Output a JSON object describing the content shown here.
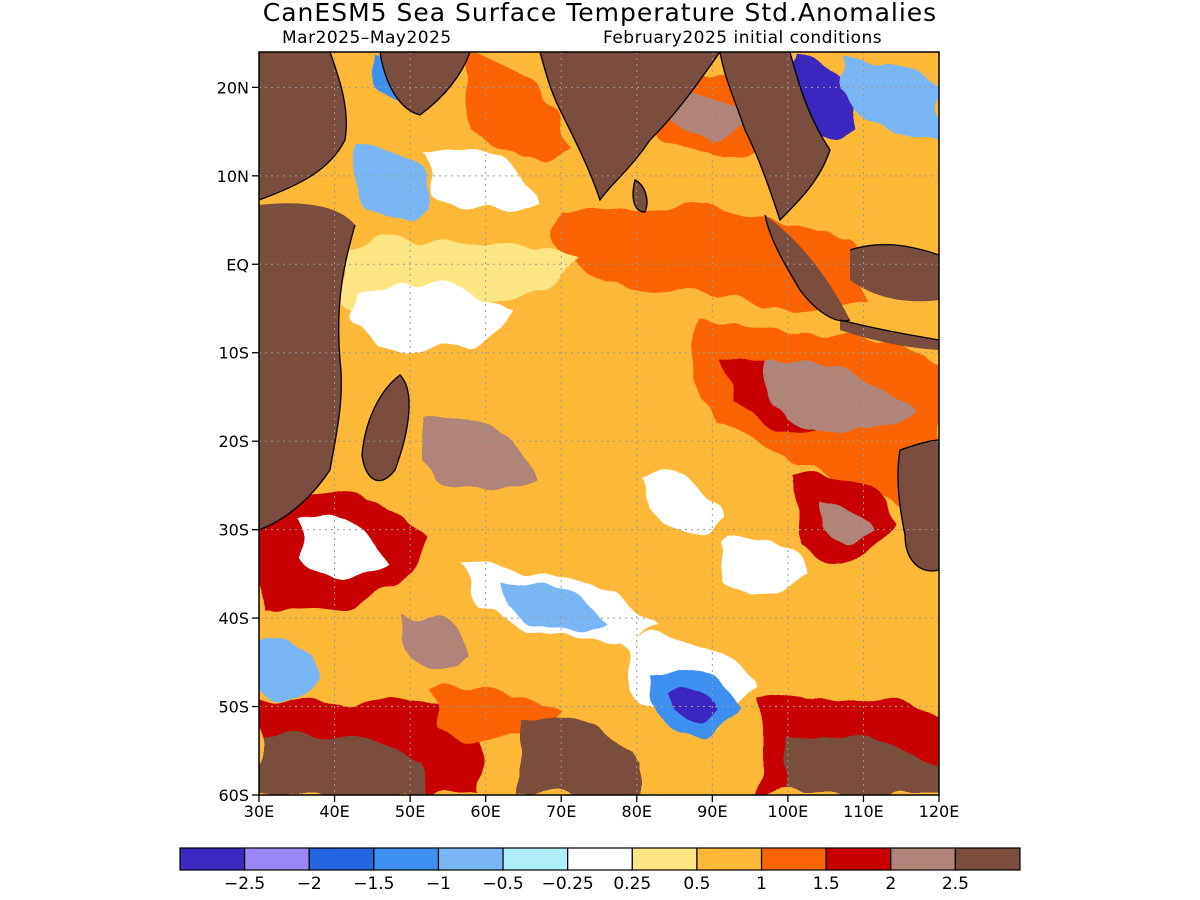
{
  "title": "CanESM5 Sea Surface Temperature Std.Anomalies",
  "subtitle_left": "Mar2025–May2025",
  "subtitle_right": "February2025 initial conditions",
  "map": {
    "lon_range": [
      30,
      120
    ],
    "lat_range": [
      -60,
      24
    ],
    "lon_ticks": [
      "30E",
      "40E",
      "50E",
      "60E",
      "70E",
      "80E",
      "90E",
      "100E",
      "110E",
      "120E"
    ],
    "lat_ticks": [
      "20N",
      "10N",
      "EQ",
      "10S",
      "20S",
      "30S",
      "40S",
      "50S",
      "60S"
    ],
    "gridlines": true,
    "land_color": "#7a4d3e"
  },
  "colorbar": {
    "colors": [
      "#3a28c0",
      "#9a87f5",
      "#2366e0",
      "#3d8ff0",
      "#79b6f5",
      "#aeeef8",
      "#ffffff",
      "#fee584",
      "#feb838",
      "#fb6405",
      "#c80000",
      "#b08478",
      "#7a4d3e"
    ],
    "labels": [
      "−2.5",
      "−2",
      "−1.5",
      "−1",
      "−0.5",
      "−0.25",
      "0.25",
      "0.5",
      "1",
      "1.5",
      "2",
      "2.5"
    ]
  }
}
